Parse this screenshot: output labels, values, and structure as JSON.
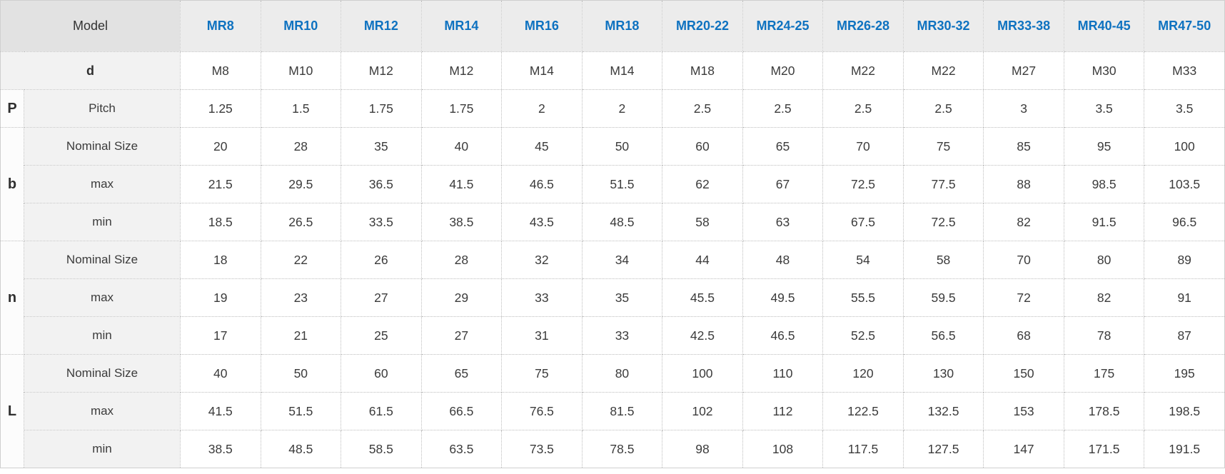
{
  "header": {
    "model_label": "Model",
    "columns": [
      "MR8",
      "MR10",
      "MR12",
      "MR14",
      "MR16",
      "MR18",
      "MR20-22",
      "MR24-25",
      "MR26-28",
      "MR30-32",
      "MR33-38",
      "MR40-45",
      "MR47-50"
    ]
  },
  "groups": [
    {
      "letter": "P"
    },
    {
      "letter": "b"
    },
    {
      "letter": "n"
    },
    {
      "letter": "L"
    }
  ],
  "rows": [
    {
      "label": "d",
      "values": [
        "M8",
        "M10",
        "M12",
        "M12",
        "M14",
        "M14",
        "M18",
        "M20",
        "M22",
        "M22",
        "M27",
        "M30",
        "M33"
      ]
    },
    {
      "label": "Pitch",
      "values": [
        "1.25",
        "1.5",
        "1.75",
        "1.75",
        "2",
        "2",
        "2.5",
        "2.5",
        "2.5",
        "2.5",
        "3",
        "3.5",
        "3.5"
      ]
    },
    {
      "label": "Nominal Size",
      "values": [
        "20",
        "28",
        "35",
        "40",
        "45",
        "50",
        "60",
        "65",
        "70",
        "75",
        "85",
        "95",
        "100"
      ]
    },
    {
      "label": "max",
      "values": [
        "21.5",
        "29.5",
        "36.5",
        "41.5",
        "46.5",
        "51.5",
        "62",
        "67",
        "72.5",
        "77.5",
        "88",
        "98.5",
        "103.5"
      ]
    },
    {
      "label": "min",
      "values": [
        "18.5",
        "26.5",
        "33.5",
        "38.5",
        "43.5",
        "48.5",
        "58",
        "63",
        "67.5",
        "72.5",
        "82",
        "91.5",
        "96.5"
      ]
    },
    {
      "label": "Nominal Size",
      "values": [
        "18",
        "22",
        "26",
        "28",
        "32",
        "34",
        "44",
        "48",
        "54",
        "58",
        "70",
        "80",
        "89"
      ]
    },
    {
      "label": "max",
      "values": [
        "19",
        "23",
        "27",
        "29",
        "33",
        "35",
        "45.5",
        "49.5",
        "55.5",
        "59.5",
        "72",
        "82",
        "91"
      ]
    },
    {
      "label": "min",
      "values": [
        "17",
        "21",
        "25",
        "27",
        "31",
        "33",
        "42.5",
        "46.5",
        "52.5",
        "56.5",
        "68",
        "78",
        "87"
      ]
    },
    {
      "label": "Nominal Size",
      "values": [
        "40",
        "50",
        "60",
        "65",
        "75",
        "80",
        "100",
        "110",
        "120",
        "130",
        "150",
        "175",
        "195"
      ]
    },
    {
      "label": "max",
      "values": [
        "41.5",
        "51.5",
        "61.5",
        "66.5",
        "76.5",
        "81.5",
        "102",
        "112",
        "122.5",
        "132.5",
        "153",
        "178.5",
        "198.5"
      ]
    },
    {
      "label": "min",
      "values": [
        "38.5",
        "48.5",
        "58.5",
        "63.5",
        "73.5",
        "78.5",
        "98",
        "108",
        "117.5",
        "127.5",
        "147",
        "171.5",
        "191.5"
      ]
    }
  ],
  "colors": {
    "header_text_blue": "#0e72c0",
    "model_header_bg": "#e2e2e2",
    "mr_header_bg": "#ececec",
    "sublabel_bg": "#f2f2f2",
    "data_cell_bg": "#ffffff",
    "body_text": "#3b3b3b",
    "border": "#bdbdbd"
  }
}
